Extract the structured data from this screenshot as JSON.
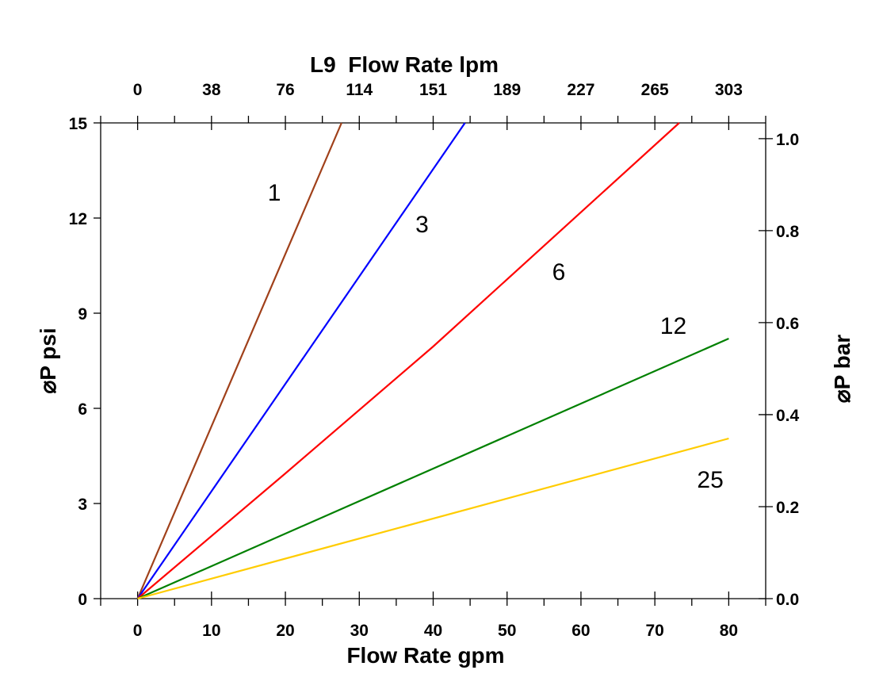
{
  "chart_data": {
    "type": "line",
    "xlabel": "Flow Rate gpm",
    "ylabel": "⌀P psi",
    "y2label": "⌀P bar",
    "x2label": "L9  Flow Rate lpm",
    "xlim": [
      -5,
      85
    ],
    "ylim": [
      0,
      15
    ],
    "xticks": [
      0,
      10,
      20,
      30,
      40,
      50,
      60,
      70,
      80
    ],
    "yticks": [
      0,
      3,
      6,
      9,
      12,
      15
    ],
    "x2ticks": [
      "0",
      "38",
      "76",
      "114",
      "151",
      "189",
      "227",
      "265",
      "303"
    ],
    "y2ticks": [
      "0.0",
      "0.2",
      "0.4",
      "0.6",
      "0.8",
      "1.0"
    ],
    "y2_values": [
      0,
      0.2,
      0.4,
      0.6,
      0.8,
      1.0
    ],
    "grid": false,
    "series": [
      {
        "name": "1",
        "color": "#a0401a",
        "x": [
          0,
          27.6
        ],
        "y": [
          0,
          15
        ],
        "label_at": [
          18.5,
          12.8
        ]
      },
      {
        "name": "3",
        "color": "#0000ff",
        "x": [
          0,
          44.3
        ],
        "y": [
          0,
          15
        ],
        "label_at": [
          38.5,
          11.8
        ]
      },
      {
        "name": "6",
        "color": "#ff0000",
        "x": [
          0,
          20,
          40,
          73.3
        ],
        "y": [
          0,
          3.95,
          7.95,
          15
        ],
        "label_at": [
          57,
          10.3
        ]
      },
      {
        "name": "12",
        "color": "#008000",
        "x": [
          0,
          80
        ],
        "y": [
          0,
          8.2
        ],
        "label_at": [
          72.5,
          8.6
        ]
      },
      {
        "name": "25",
        "color": "#ffcc00",
        "x": [
          0,
          80
        ],
        "y": [
          0,
          5.05
        ],
        "label_at": [
          77.5,
          3.75
        ]
      }
    ]
  }
}
